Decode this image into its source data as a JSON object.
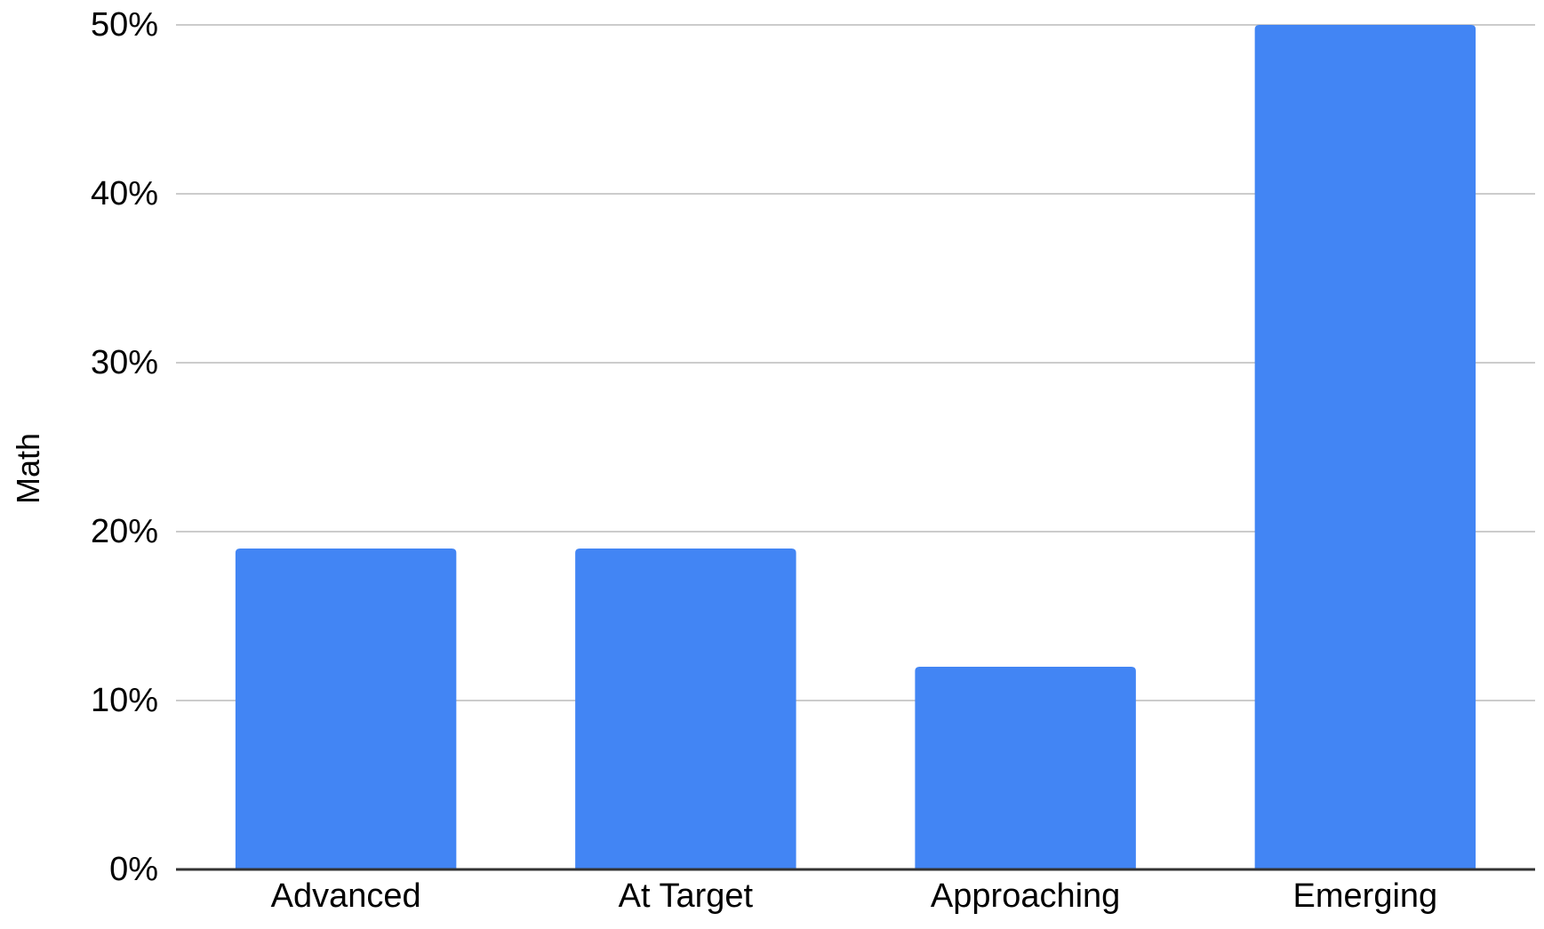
{
  "chart_data": {
    "type": "bar",
    "title": "",
    "xlabel": "",
    "ylabel": "Math",
    "categories": [
      "Advanced",
      "At Target",
      "Approaching",
      "Emerging"
    ],
    "series": [
      {
        "values": [
          19,
          19,
          12,
          50
        ]
      }
    ],
    "ylim": [
      0,
      50
    ],
    "y_ticks": [
      0,
      10,
      20,
      30,
      40,
      50
    ],
    "y_tick_labels": [
      "0%",
      "10%",
      "20%",
      "30%",
      "40%",
      "50%"
    ],
    "value_unit": "%",
    "grid": true,
    "legend": "none",
    "colors": {
      "bar": "#4285f4",
      "grid": "#cccccc",
      "axis": "#333333",
      "text": "#000000"
    }
  }
}
